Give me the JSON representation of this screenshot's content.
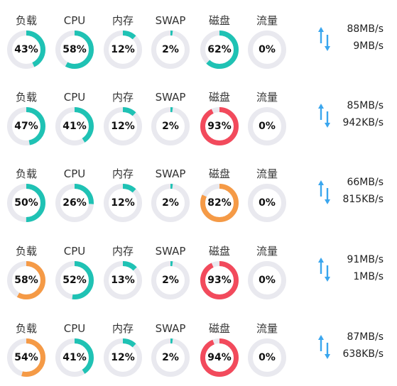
{
  "labels": {
    "load": "负载",
    "cpu": "CPU",
    "memory": "内存",
    "swap": "SWAP",
    "disk": "磁盘",
    "traffic": "流量"
  },
  "colors": {
    "track": "#e9e9ef",
    "teal": "#1fc2b4",
    "orange": "#f59a46",
    "red": "#f24a5c",
    "arrow": "#3aa6ee"
  },
  "icons": {
    "traffic": "up-down-arrows-icon"
  },
  "servers": [
    {
      "load": {
        "text": "43%",
        "value": 43,
        "color": "teal"
      },
      "cpu": {
        "text": "58%",
        "value": 58,
        "color": "teal"
      },
      "memory": {
        "text": "12%",
        "value": 12,
        "color": "teal"
      },
      "swap": {
        "text": "2%",
        "value": 2,
        "color": "teal"
      },
      "disk": {
        "text": "62%",
        "value": 62,
        "color": "teal"
      },
      "traffic": {
        "text": "0%",
        "value": 0,
        "color": "teal"
      },
      "net_up": "88MB/s",
      "net_down": "9MB/s"
    },
    {
      "load": {
        "text": "47%",
        "value": 47,
        "color": "teal"
      },
      "cpu": {
        "text": "41%",
        "value": 41,
        "color": "teal"
      },
      "memory": {
        "text": "12%",
        "value": 12,
        "color": "teal"
      },
      "swap": {
        "text": "2%",
        "value": 2,
        "color": "teal"
      },
      "disk": {
        "text": "93%",
        "value": 93,
        "color": "red"
      },
      "traffic": {
        "text": "0%",
        "value": 0,
        "color": "teal"
      },
      "net_up": "85MB/s",
      "net_down": "942KB/s"
    },
    {
      "load": {
        "text": "50%",
        "value": 50,
        "color": "teal"
      },
      "cpu": {
        "text": "26%",
        "value": 26,
        "color": "teal"
      },
      "memory": {
        "text": "12%",
        "value": 12,
        "color": "teal"
      },
      "swap": {
        "text": "2%",
        "value": 2,
        "color": "teal"
      },
      "disk": {
        "text": "82%",
        "value": 82,
        "color": "orange"
      },
      "traffic": {
        "text": "0%",
        "value": 0,
        "color": "teal"
      },
      "net_up": "66MB/s",
      "net_down": "815KB/s"
    },
    {
      "load": {
        "text": "58%",
        "value": 58,
        "color": "orange"
      },
      "cpu": {
        "text": "52%",
        "value": 52,
        "color": "teal"
      },
      "memory": {
        "text": "13%",
        "value": 13,
        "color": "teal"
      },
      "swap": {
        "text": "2%",
        "value": 2,
        "color": "teal"
      },
      "disk": {
        "text": "93%",
        "value": 93,
        "color": "red"
      },
      "traffic": {
        "text": "0%",
        "value": 0,
        "color": "teal"
      },
      "net_up": "91MB/s",
      "net_down": "1MB/s"
    },
    {
      "load": {
        "text": "54%",
        "value": 54,
        "color": "orange"
      },
      "cpu": {
        "text": "41%",
        "value": 41,
        "color": "teal"
      },
      "memory": {
        "text": "12%",
        "value": 12,
        "color": "teal"
      },
      "swap": {
        "text": "2%",
        "value": 2,
        "color": "teal"
      },
      "disk": {
        "text": "94%",
        "value": 94,
        "color": "red"
      },
      "traffic": {
        "text": "0%",
        "value": 0,
        "color": "teal"
      },
      "net_up": "87MB/s",
      "net_down": "638KB/s"
    }
  ]
}
